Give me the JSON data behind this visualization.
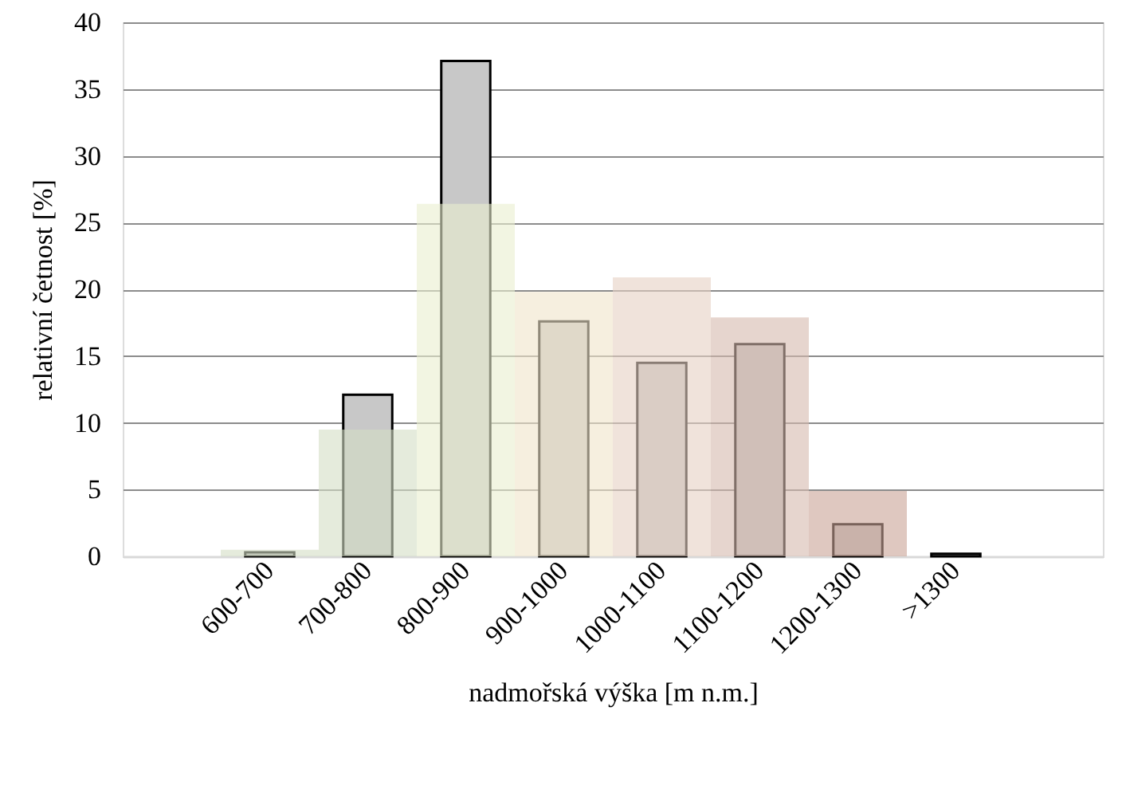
{
  "chart_data": {
    "type": "bar",
    "xlabel": "nadmořská výška [m n.m.]",
    "ylabel": "relativní četnost [%]",
    "categories": [
      null,
      "600-700",
      "700-800",
      "800-900",
      "900-1000",
      "1000-1100",
      "1100-1200",
      "1200-1300",
      ">1300",
      null
    ],
    "series": [
      {
        "color": "#c8c8c8",
        "values": [
          null,
          0.3,
          12.1,
          37.1,
          17.6,
          14.5,
          15.9,
          2.4,
          0.2,
          null
        ]
      },
      {
        "colors": [
          "#ffffff",
          "#d3ddc4",
          "#d3ddc4",
          "#eaefcf",
          "#f0e4c9",
          "#e6d0c3",
          "#d6b9ae",
          "#c9a496",
          "#c9a496",
          "#ffffff"
        ],
        "values": [
          null,
          0.5,
          9.5,
          26.4,
          19.8,
          20.9,
          17.9,
          4.9,
          0,
          null
        ]
      }
    ],
    "ylim": [
      0,
      40
    ],
    "yticks": [
      0,
      5,
      10,
      15,
      20,
      25,
      30,
      35,
      40
    ],
    "grid": "y"
  }
}
